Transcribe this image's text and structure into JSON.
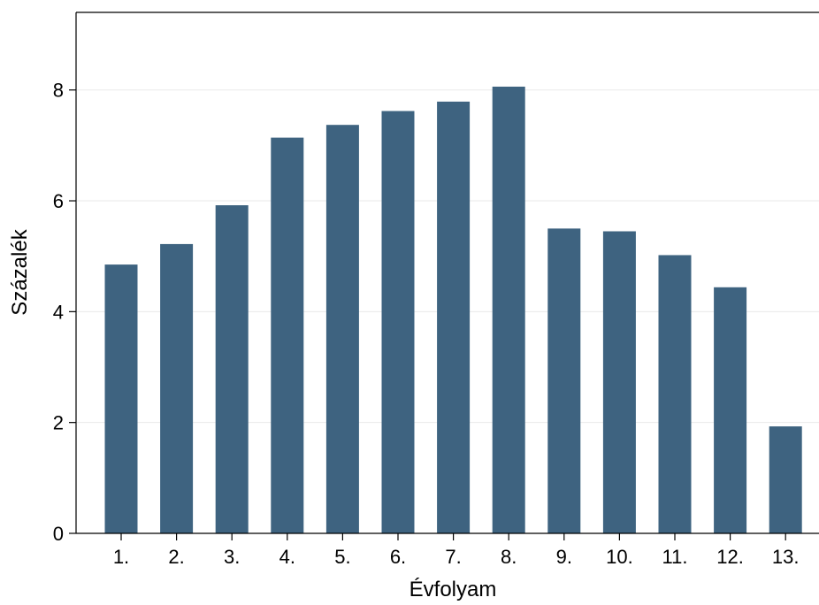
{
  "chart_data": {
    "type": "bar",
    "title": "",
    "xlabel": "Évfolyam",
    "ylabel": "Százalék",
    "categories": [
      "1.",
      "2.",
      "3.",
      "4.",
      "5.",
      "6.",
      "7.",
      "8.",
      "9.",
      "10.",
      "11.",
      "12.",
      "13."
    ],
    "values": [
      4.85,
      5.22,
      5.92,
      7.14,
      7.37,
      7.62,
      7.79,
      8.06,
      5.5,
      5.45,
      5.02,
      4.44,
      1.93
    ],
    "ylim": [
      0,
      9.4
    ],
    "yticks": [
      0,
      2,
      4,
      6,
      8
    ],
    "ytick_labels": [
      "0",
      "2",
      "4",
      "6",
      "8"
    ],
    "grid": true,
    "legend": "none",
    "bar_color": "#3e6380"
  }
}
